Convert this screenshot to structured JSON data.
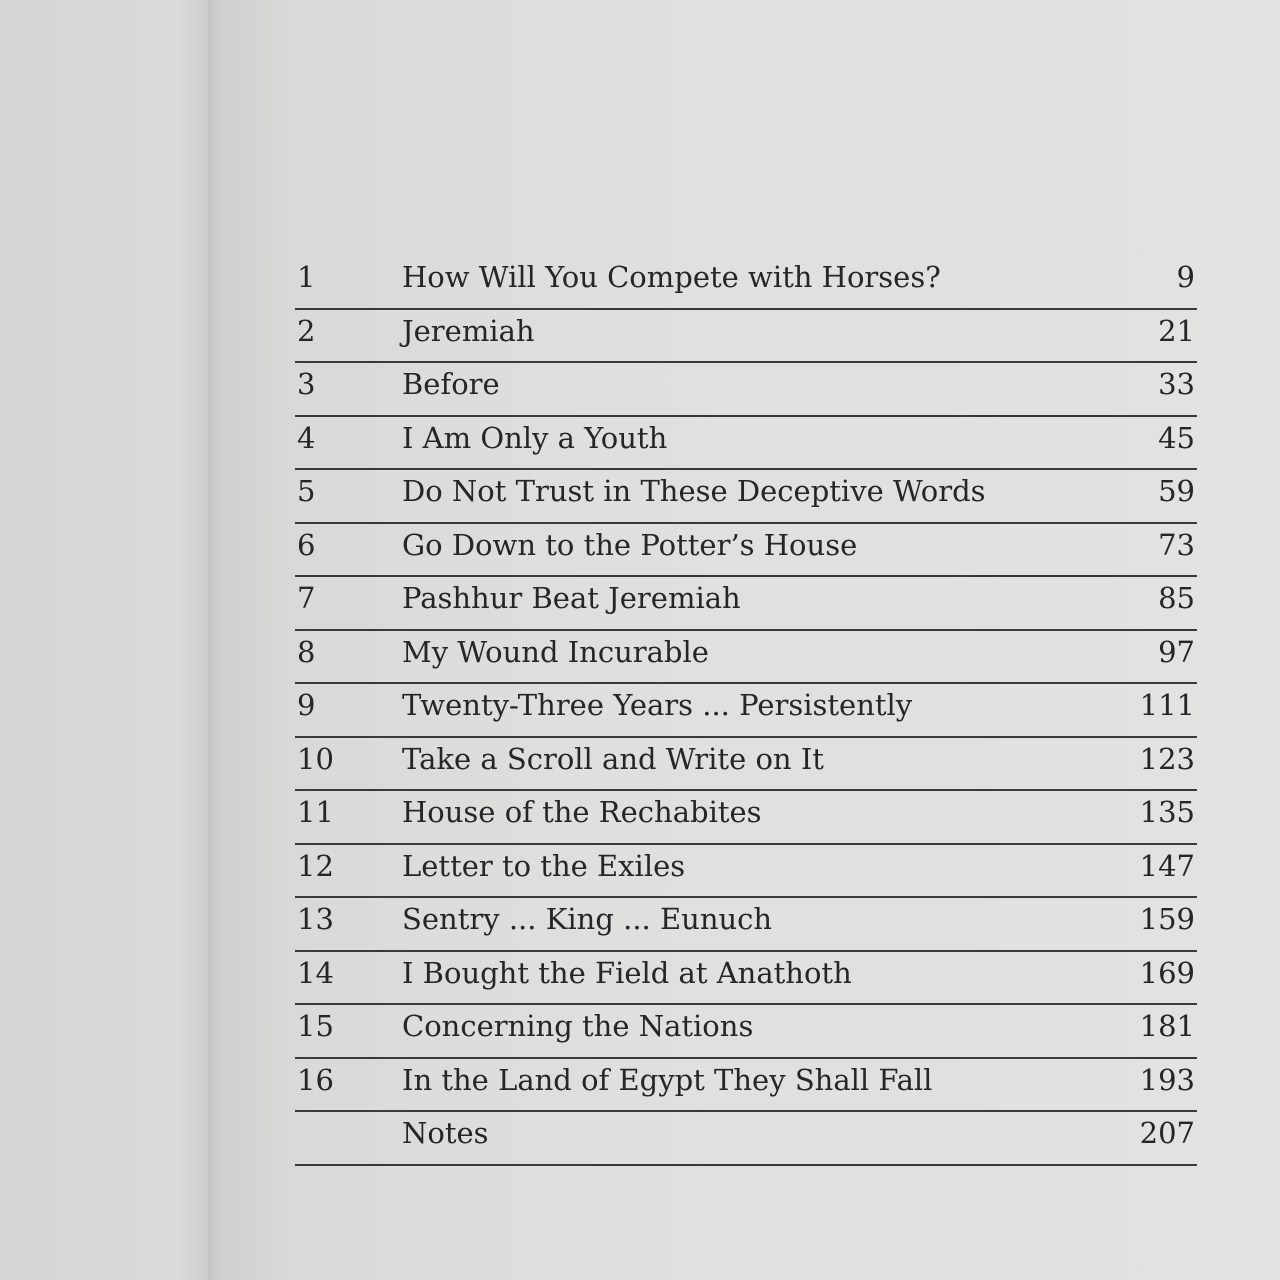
{
  "toc": [
    {
      "number": "1",
      "title": "How Will You Compete with Horses?",
      "page": "9"
    },
    {
      "number": "2",
      "title": "Jeremiah",
      "page": "21"
    },
    {
      "number": "3",
      "title": "Before",
      "page": "33"
    },
    {
      "number": "4",
      "title": "I Am Only a Youth",
      "page": "45"
    },
    {
      "number": "5",
      "title": "Do Not Trust in These Deceptive Words",
      "page": "59"
    },
    {
      "number": "6",
      "title": "Go Down to the Potter’s House",
      "page": "73"
    },
    {
      "number": "7",
      "title": "Pashhur Beat Jeremiah",
      "page": "85"
    },
    {
      "number": "8",
      "title": "My Wound Incurable",
      "page": "97"
    },
    {
      "number": "9",
      "title": "Twenty-Three Years ... Persistently",
      "page": "111"
    },
    {
      "number": "10",
      "title": "Take a Scroll and Write on It",
      "page": "123"
    },
    {
      "number": "11",
      "title": "House of the Rechabites",
      "page": "135"
    },
    {
      "number": "12",
      "title": "Letter to the Exiles",
      "page": "147"
    },
    {
      "number": "13",
      "title": "Sentry ... King ... Eunuch",
      "page": "159"
    },
    {
      "number": "14",
      "title": "I Bought the Field at Anathoth",
      "page": "169"
    },
    {
      "number": "15",
      "title": "Concerning the Nations",
      "page": "181"
    },
    {
      "number": "16",
      "title": "In the Land of Egypt They Shall Fall",
      "page": "193"
    },
    {
      "number": "",
      "title": "Notes",
      "page": "207"
    }
  ]
}
